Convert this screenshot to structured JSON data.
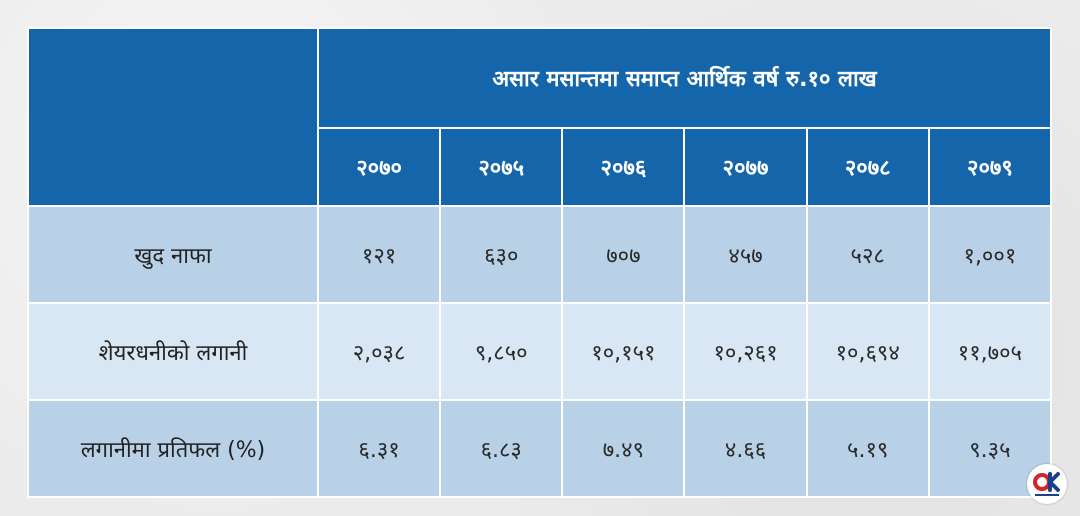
{
  "header": {
    "title": "असार मसान्तमा समाप्त आर्थिक वर्ष रु.१० लाख",
    "years": [
      "२०७०",
      "२०७५",
      "२०७६",
      "२०७७",
      "२०७८",
      "२०७९"
    ]
  },
  "rows": [
    {
      "label": "खुद नाफा",
      "values": [
        "१२१",
        "६३०",
        "७०७",
        "४५७",
        "५२८",
        "१,००१"
      ]
    },
    {
      "label": "शेयरधनीको लगानी",
      "values": [
        "२,०३८",
        "९,८५०",
        "१०,१५१",
        "१०,२६१",
        "१०,६९४",
        "११,७०५"
      ]
    },
    {
      "label": "लगानीमा प्रतिफल (%)",
      "values": [
        "६.३१",
        "६.८३",
        "७.४९",
        "४.६६",
        "५.१९",
        "९.३५"
      ]
    }
  ],
  "colors": {
    "header_bg": "#1565ab",
    "row_dark": "#b8d1e7",
    "row_light": "#d9e6f3",
    "logo_red": "#d6232a",
    "logo_blue": "#1b3f8f"
  },
  "logo": {
    "icon": "onlinekhabar-logo-icon"
  }
}
